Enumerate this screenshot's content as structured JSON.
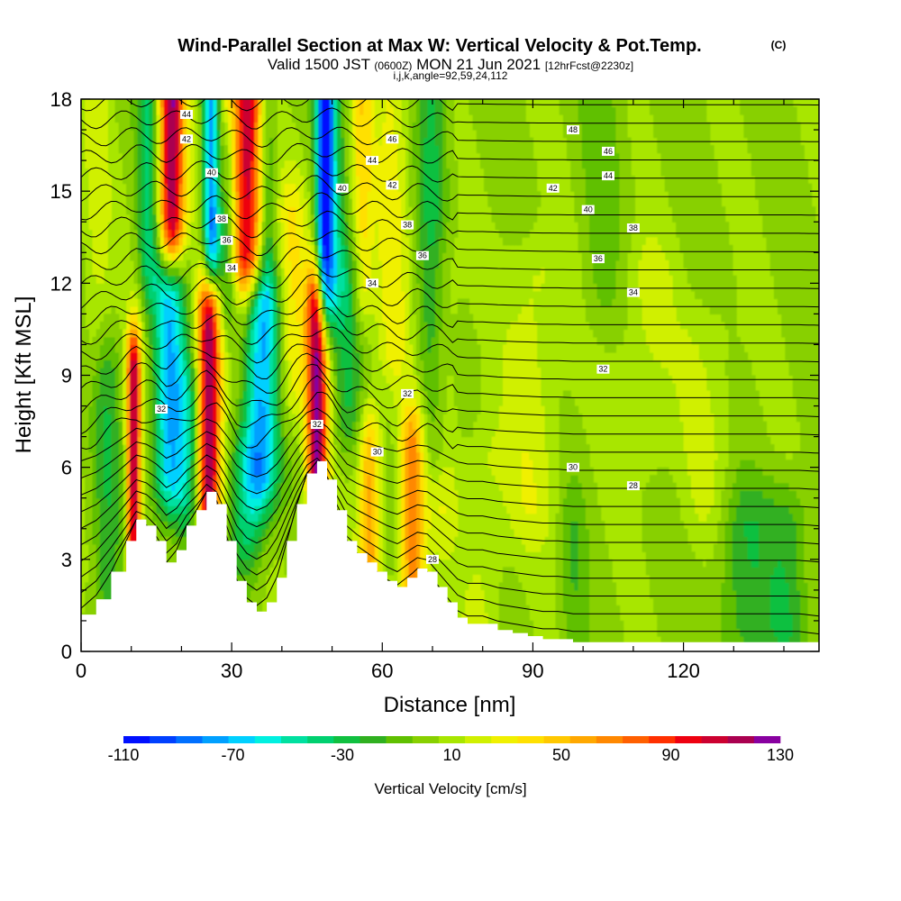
{
  "title": "Wind-Parallel Section at Max W: Vertical Velocity & Pot.Temp.",
  "title_mark": "(C)",
  "subtitle_parts": {
    "a": "Valid 1500 JST ",
    "b": "(0600Z)",
    "c": " MON 21 Jun 2021 ",
    "d": "[12hrFcst@2230z]"
  },
  "subtitle2": "i,j,k,angle=92,59,24,112",
  "colors": {
    "terrain": "#ffffff",
    "contour": "#000000",
    "base_fill": "#a8e600"
  },
  "chart_data": {
    "type": "heatmap",
    "xlabel": "Distance [nm]",
    "ylabel": "Height [Kft MSL]",
    "xlim": [
      0,
      147
    ],
    "ylim": [
      0,
      18
    ],
    "xticks": [
      0,
      30,
      60,
      90,
      120
    ],
    "yticks": [
      0,
      3,
      6,
      9,
      12,
      15,
      18
    ],
    "colorbar": {
      "label": "Vertical Velocity [cm/s]",
      "min": -110,
      "max": 130,
      "step": 10,
      "tick_labels": [
        "-110",
        "-70",
        "-30",
        "10",
        "50",
        "90",
        "130"
      ],
      "colors": [
        "#0010ff",
        "#0040ff",
        "#0070ff",
        "#00a0ff",
        "#00d0ff",
        "#00f0e0",
        "#00e0a0",
        "#00d070",
        "#10c040",
        "#30b020",
        "#60c000",
        "#88d000",
        "#a8e600",
        "#d0f000",
        "#f0f000",
        "#ffe000",
        "#ffc800",
        "#ffa800",
        "#ff8800",
        "#ff6000",
        "#ff3000",
        "#ee0010",
        "#cc0030",
        "#aa0050",
        "#8800a0"
      ]
    },
    "terrain_profile": {
      "x": [
        0,
        3,
        6,
        9,
        11,
        13,
        15,
        17,
        19,
        21,
        23,
        25,
        27,
        29,
        31,
        33,
        35,
        37,
        39,
        41,
        43,
        45,
        47,
        49,
        51,
        53,
        55,
        57,
        59,
        61,
        63,
        65,
        67,
        69,
        71,
        73,
        75,
        77,
        80,
        83,
        86,
        89,
        92,
        95,
        98,
        101,
        104,
        107,
        110,
        113,
        116,
        119,
        122,
        125,
        128,
        131,
        134,
        137,
        140,
        143,
        147
      ],
      "z": [
        1.2,
        1.7,
        2.6,
        3.6,
        4.3,
        4.1,
        3.6,
        2.9,
        3.3,
        4.1,
        4.6,
        5.2,
        4.8,
        3.6,
        2.3,
        1.6,
        1.3,
        1.6,
        2.4,
        3.6,
        4.8,
        5.8,
        6.2,
        5.6,
        4.6,
        3.6,
        3.2,
        2.9,
        2.6,
        2.3,
        2.1,
        2.4,
        2.7,
        2.6,
        2.1,
        1.6,
        1.1,
        0.9,
        0.9,
        0.7,
        0.6,
        0.5,
        0.4,
        0.4,
        0.3,
        0.3,
        0.3,
        0.3,
        0.3,
        0.3,
        0.3,
        0.3,
        0.3,
        0.3,
        0.3,
        0.3,
        0.3,
        0.3,
        0.3,
        0.3,
        0.2
      ]
    },
    "w_features": [
      {
        "x": 10.5,
        "z0": 2,
        "z1": 9,
        "sx": 1.0,
        "w": 115
      },
      {
        "x": 17.5,
        "z0": 6,
        "z1": 11.5,
        "sx": 2.2,
        "w": -75
      },
      {
        "x": 18,
        "z0": 14,
        "z1": 18,
        "sx": 1.8,
        "w": 120
      },
      {
        "x": 21,
        "z0": 5,
        "z1": 8,
        "sx": 1.8,
        "w": -35
      },
      {
        "x": 25.5,
        "z0": 5,
        "z1": 11,
        "sx": 1.6,
        "w": 125
      },
      {
        "x": 26,
        "z0": 13,
        "z1": 18,
        "sx": 1.2,
        "w": -105
      },
      {
        "x": 27.5,
        "z0": 16,
        "z1": 18,
        "sx": 1.8,
        "w": 40
      },
      {
        "x": 29,
        "z0": 12,
        "z1": 16,
        "sx": 1.4,
        "w": -40
      },
      {
        "x": 33,
        "z0": 13,
        "z1": 18,
        "sx": 2.2,
        "w": 110
      },
      {
        "x": 36,
        "z0": 6,
        "z1": 11,
        "sx": 2.4,
        "w": -75
      },
      {
        "x": 37,
        "z0": 13,
        "z1": 18,
        "sx": 1.2,
        "w": -30
      },
      {
        "x": 33,
        "z0": 4,
        "z1": 6,
        "sx": 2.2,
        "w": -40
      },
      {
        "x": 47,
        "z0": 6,
        "z1": 11,
        "sx": 1.5,
        "w": 125
      },
      {
        "x": 48.5,
        "z0": 12,
        "z1": 18,
        "sx": 1.2,
        "w": -110
      },
      {
        "x": 50.5,
        "z0": 12,
        "z1": 18,
        "sx": 1.5,
        "w": -30
      },
      {
        "x": 53,
        "z0": 8,
        "z1": 12,
        "sx": 2.2,
        "w": -30
      },
      {
        "x": 57.5,
        "z0": 3.2,
        "z1": 6.5,
        "sx": 1.5,
        "w": 55
      },
      {
        "x": 66,
        "z0": 2.5,
        "z1": 6.5,
        "sx": 1.8,
        "w": 70
      },
      {
        "x": 70,
        "z0": 7,
        "z1": 18,
        "sx": 2.2,
        "w": -30
      },
      {
        "x": 72,
        "z0": 5,
        "z1": 12,
        "sx": 2.2,
        "w": 20
      },
      {
        "x": 62,
        "z0": 10,
        "z1": 18,
        "sx": 2.5,
        "w": 25
      },
      {
        "x": 90,
        "z0": 5,
        "z1": 12,
        "sx": 4.0,
        "w": 18
      },
      {
        "x": 98,
        "z0": 1,
        "z1": 4,
        "sx": 1.8,
        "w": -15
      },
      {
        "x": 112,
        "z0": 7,
        "z1": 12,
        "sx": 4.0,
        "w": 15
      },
      {
        "x": 125,
        "z0": 5,
        "z1": 10,
        "sx": 4.0,
        "w": 12
      },
      {
        "x": 132,
        "z0": 1,
        "z1": 4,
        "sx": 4.0,
        "w": -25
      },
      {
        "x": 141,
        "z0": 1,
        "z1": 4,
        "sx": 3.0,
        "w": -25
      },
      {
        "x": 80,
        "z0": 1,
        "z1": 6,
        "sx": 3.0,
        "w": 15
      },
      {
        "x": 104,
        "z0": 12,
        "z1": 18,
        "sx": 3.0,
        "w": -12
      },
      {
        "x": 5,
        "z0": 1.5,
        "z1": 9,
        "sx": 2.0,
        "w": -25
      },
      {
        "x": 3,
        "z0": 10,
        "z1": 18,
        "sx": 2.0,
        "w": 15
      },
      {
        "x": 13.5,
        "z0": 13,
        "z1": 18,
        "sx": 1.5,
        "w": -40
      },
      {
        "x": 42,
        "z0": 9,
        "z1": 14,
        "sx": 2.0,
        "w": 30
      },
      {
        "x": 56,
        "z0": 12,
        "z1": 18,
        "sx": 1.5,
        "w": 35
      }
    ],
    "theta_contour_labels": [
      {
        "x": 21,
        "z": 17.5,
        "text": "44"
      },
      {
        "x": 21,
        "z": 16.7,
        "text": "42"
      },
      {
        "x": 26,
        "z": 15.6,
        "text": "40"
      },
      {
        "x": 28,
        "z": 14.1,
        "text": "38"
      },
      {
        "x": 29,
        "z": 13.4,
        "text": "36"
      },
      {
        "x": 30,
        "z": 12.5,
        "text": "34"
      },
      {
        "x": 16,
        "z": 7.9,
        "text": "32"
      },
      {
        "x": 47,
        "z": 7.4,
        "text": "32"
      },
      {
        "x": 62,
        "z": 16.7,
        "text": "46"
      },
      {
        "x": 58,
        "z": 16.0,
        "text": "44"
      },
      {
        "x": 52,
        "z": 15.1,
        "text": "40"
      },
      {
        "x": 62,
        "z": 15.2,
        "text": "42"
      },
      {
        "x": 65,
        "z": 13.9,
        "text": "38"
      },
      {
        "x": 68,
        "z": 12.9,
        "text": "36"
      },
      {
        "x": 58,
        "z": 12.0,
        "text": "34"
      },
      {
        "x": 65,
        "z": 8.4,
        "text": "32"
      },
      {
        "x": 59,
        "z": 6.5,
        "text": "30"
      },
      {
        "x": 70,
        "z": 3.0,
        "text": "28"
      },
      {
        "x": 98,
        "z": 17.0,
        "text": "48"
      },
      {
        "x": 105,
        "z": 16.3,
        "text": "46"
      },
      {
        "x": 105,
        "z": 15.5,
        "text": "44"
      },
      {
        "x": 94,
        "z": 15.1,
        "text": "42"
      },
      {
        "x": 101,
        "z": 14.4,
        "text": "40"
      },
      {
        "x": 110,
        "z": 13.8,
        "text": "38"
      },
      {
        "x": 103,
        "z": 12.8,
        "text": "36"
      },
      {
        "x": 110,
        "z": 11.7,
        "text": "34"
      },
      {
        "x": 104,
        "z": 9.2,
        "text": "32"
      },
      {
        "x": 98,
        "z": 6.0,
        "text": "30"
      },
      {
        "x": 110,
        "z": 5.4,
        "text": "28"
      }
    ]
  }
}
